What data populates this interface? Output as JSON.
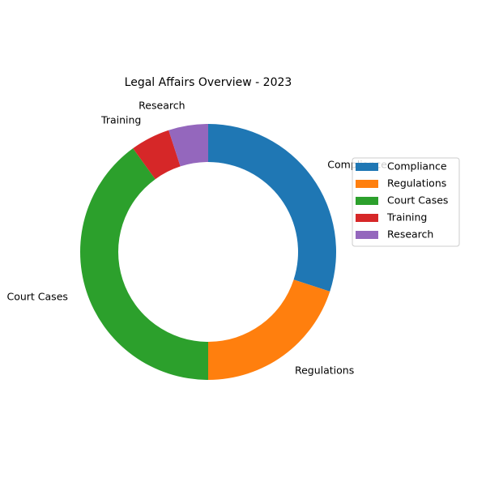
{
  "chart_data": {
    "type": "pie",
    "style": "donut",
    "title": "Legal Affairs Overview - 2023",
    "categories": [
      "Compliance",
      "Regulations",
      "Court Cases",
      "Training",
      "Research"
    ],
    "values": [
      30,
      20,
      40,
      5,
      5
    ],
    "colors": [
      "#1f77b4",
      "#ff7f0e",
      "#2ca02c",
      "#d62728",
      "#9467bd"
    ],
    "start_angle_deg": 90,
    "direction": "clockwise",
    "legend": {
      "placement": "right",
      "entries": [
        "Compliance",
        "Regulations",
        "Court Cases",
        "Training",
        "Research"
      ]
    }
  }
}
